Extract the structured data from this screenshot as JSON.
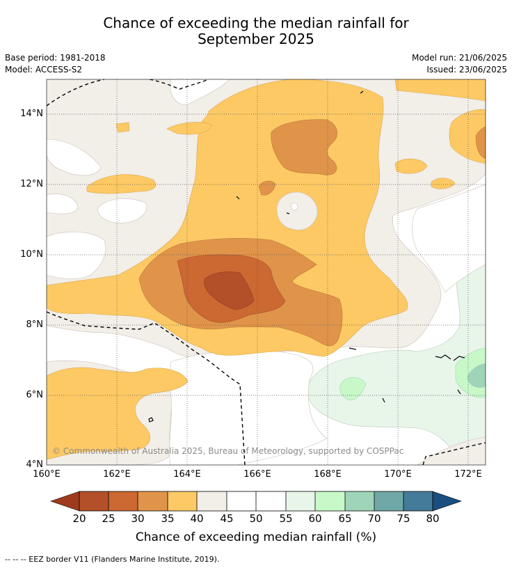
{
  "title_line1": "Chance of exceeding the median rainfall for",
  "title_line2": "September 2025",
  "base_period": "Base period: 1981-2018",
  "model": "Model: ACCESS-S2",
  "model_run": "Model run: 21/06/2025",
  "issued": "Issued: 23/06/2025",
  "copyright": "© Commonwealth of Australia 2025, Bureau of Meteorology, supported by COSPPac",
  "eez_note": "--  --  -- EEZ border V11 (Flanders Marine Institute, 2019).",
  "colorbar_label": "Chance of exceeding median rainfall (%)",
  "map": {
    "lon_range": [
      160,
      172.5
    ],
    "lat_range": [
      4,
      15
    ],
    "lon_ticks": [
      "160°E",
      "162°E",
      "164°E",
      "166°E",
      "168°E",
      "170°E",
      "172°E"
    ],
    "lat_ticks": [
      "14°N",
      "12°N",
      "10°N",
      "8°N",
      "6°N",
      "4°N"
    ],
    "grid": "dotted"
  },
  "colorbar": {
    "ticks": [
      "20",
      "25",
      "30",
      "35",
      "40",
      "45",
      "50",
      "55",
      "60",
      "65",
      "70",
      "75",
      "80"
    ],
    "colors": {
      "under_20": "#a03a1e",
      "20_25": "#b3502a",
      "25_30": "#cc6832",
      "30_35": "#e0944a",
      "35_40": "#fdc964",
      "40_45": "#f2eee8",
      "45_50": "#ffffff",
      "50_55": "#ffffff",
      "55_60": "#e8f5e9",
      "60_65": "#c8f8c8",
      "65_70": "#9fd4b8",
      "70_75": "#70a8a8",
      "75_80": "#447a9a",
      "over_80": "#1a4f80"
    }
  }
}
